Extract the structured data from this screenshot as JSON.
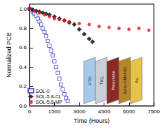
{
  "chart_data": {
    "type": "scatter",
    "x_label": "Time (Hours)",
    "y_label": "Normalized PCE",
    "xlim": [
      0,
      7500
    ],
    "xticks": [
      0,
      1500,
      3000,
      4500,
      6000,
      7500
    ],
    "ylim": [
      0,
      1.05
    ],
    "yticks": [
      {
        "value": 0,
        "label": "0.0"
      },
      0.2,
      0.4,
      0.6,
      0.8,
      {
        "value": 1,
        "label": "1.0"
      }
    ],
    "grid": false,
    "legend": "lower left",
    "annotations": [
      "FTO",
      "TiO₂",
      "Perovskite",
      "Spiro-OMeTAD",
      "Au"
    ],
    "series": [
      {
        "name": "SOL-0",
        "color": "#3333cc",
        "marker": "open-square",
        "x": [
          0,
          100,
          200,
          300,
          400,
          500,
          600,
          700,
          800,
          900,
          1000,
          1100,
          1200,
          1300,
          1400,
          1500,
          1600,
          1700,
          1800,
          1900,
          2000,
          2100,
          2200,
          2300
        ],
        "values": [
          1.0,
          0.99,
          0.97,
          0.95,
          0.93,
          0.9,
          0.87,
          0.84,
          0.8,
          0.76,
          0.72,
          0.67,
          0.62,
          0.57,
          0.52,
          0.46,
          0.4,
          0.34,
          0.28,
          0.22,
          0.17,
          0.12,
          0.08,
          0.05
        ]
      },
      {
        "name": "SOL-5.8-CL",
        "color": "#000000",
        "marker": "diamond",
        "x": [
          0,
          200,
          400,
          600,
          800,
          1000,
          1200,
          1500,
          1800,
          2100,
          2400,
          2700,
          3000,
          3300,
          3600,
          3800
        ],
        "values": [
          1.0,
          0.99,
          0.98,
          0.97,
          0.96,
          0.95,
          0.94,
          0.92,
          0.9,
          0.88,
          0.86,
          0.84,
          0.79,
          0.74,
          0.69,
          0.66
        ]
      },
      {
        "name": "SOL-5.8-MP",
        "color": "#e8141a",
        "marker": "circle",
        "x": [
          0,
          300,
          600,
          900,
          1200,
          1500,
          1800,
          2100,
          2400,
          3000,
          3600,
          4200,
          4800,
          5400,
          6000,
          6600,
          7200
        ],
        "values": [
          1.0,
          0.98,
          0.96,
          0.94,
          0.92,
          0.9,
          0.89,
          0.88,
          0.87,
          0.85,
          0.84,
          0.82,
          0.81,
          0.8,
          0.79,
          0.8,
          0.78
        ]
      }
    ]
  }
}
